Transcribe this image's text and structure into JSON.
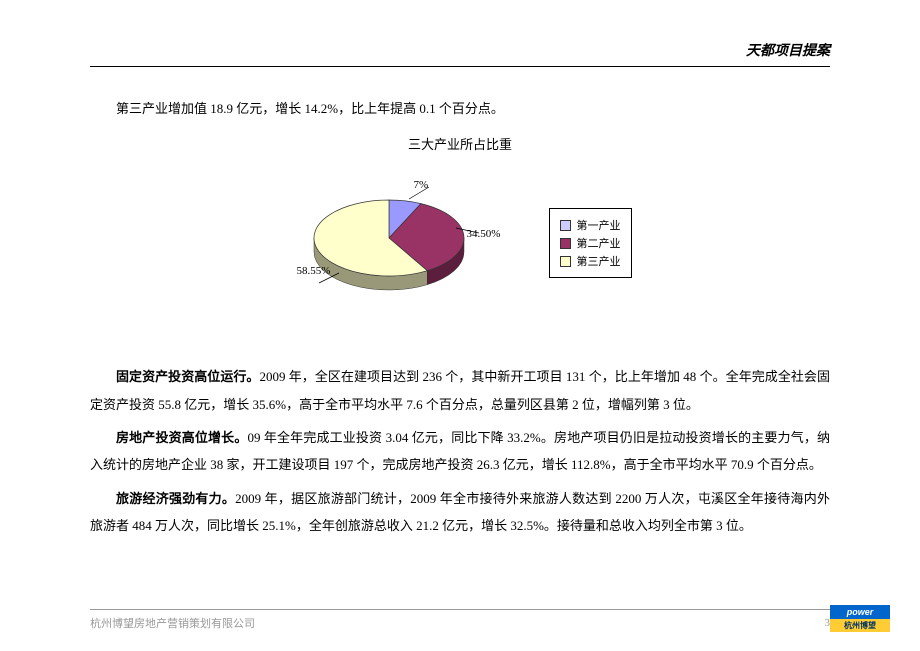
{
  "header": {
    "title": "天都项目提案"
  },
  "intro": "第三产业增加值 18.9 亿元，增长 14.2%，比上年提高 0.1 个百分点。",
  "chart": {
    "type": "pie",
    "title": "三大产业所占比重",
    "slices": [
      {
        "label": "第一产业",
        "value": 7.0,
        "display": "7%",
        "color": "#9999ff",
        "swatch": "#ccccff"
      },
      {
        "label": "第二产业",
        "value": 34.5,
        "display": "34.50%",
        "color": "#993366",
        "swatch": "#993366"
      },
      {
        "label": "第三产业",
        "value": 58.55,
        "display": "58.55%",
        "color": "#ffffcc",
        "swatch": "#ffffcc"
      }
    ],
    "border_color": "#333333",
    "depth_shade": "#666666"
  },
  "paragraphs": [
    {
      "bold": "固定资产投资高位运行。",
      "text": "2009 年，全区在建项目达到 236 个，其中新开工项目 131 个，比上年增加 48 个。全年完成全社会固定资产投资 55.8 亿元，增长 35.6%，高于全市平均水平 7.6 个百分点，总量列区县第 2 位，增幅列第 3 位。"
    },
    {
      "bold": "房地产投资高位增长。",
      "text": "09 年全年完成工业投资 3.04 亿元，同比下降 33.2%。房地产项目仍旧是拉动投资增长的主要力气，纳入统计的房地产企业 38 家，开工建设项目 197 个，完成房地产投资 26.3 亿元，增长 112.8%，高于全市平均水平 70.9 个百分点。"
    },
    {
      "bold": "旅游经济强劲有力。",
      "text": "2009 年，据区旅游部门统计，2009 年全市接待外来旅游人数达到 2200 万人次，屯溪区全年接待海内外旅游者 484 万人次，同比增长 25.1%，全年创旅游总收入 21.2 亿元，增长 32.5%。接待量和总收入均列全市第 3 位。"
    }
  ],
  "footer": {
    "company": "杭州博望房地产营销策划有限公司",
    "page": "3",
    "logo_top": "power",
    "logo_bottom": "杭州博望"
  }
}
